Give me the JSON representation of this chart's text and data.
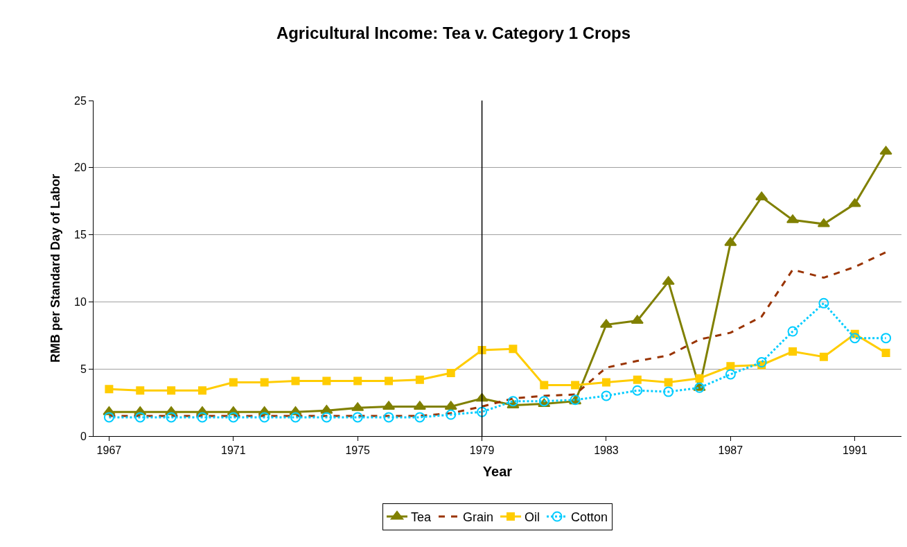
{
  "chart_data": {
    "type": "line",
    "title": "Agricultural Income: Tea v. Category 1 Crops",
    "xlabel": "Year",
    "ylabel": "RMB per Standard Day of Labor",
    "x": [
      1967,
      1968,
      1969,
      1970,
      1971,
      1972,
      1973,
      1974,
      1975,
      1976,
      1977,
      1978,
      1979,
      1980,
      1981,
      1982,
      1983,
      1984,
      1985,
      1986,
      1987,
      1988,
      1989,
      1990,
      1991,
      1992
    ],
    "xlim": [
      1966.5,
      1992.5
    ],
    "xticks": [
      1967,
      1971,
      1975,
      1979,
      1983,
      1987,
      1991
    ],
    "ylim": [
      0,
      25
    ],
    "yticks": [
      0,
      5,
      10,
      15,
      20,
      25
    ],
    "grid": "y",
    "legend": "bottom",
    "ref_lines": [
      {
        "axis": "x",
        "value": 1979,
        "color": "#000000"
      }
    ],
    "series": [
      {
        "name": "Tea",
        "color": "#808000",
        "marker": "triangle",
        "line_style": "solid",
        "values": [
          1.8,
          1.8,
          1.8,
          1.8,
          1.8,
          1.8,
          1.8,
          1.9,
          2.1,
          2.2,
          2.2,
          2.2,
          2.8,
          2.3,
          2.4,
          2.6,
          8.3,
          8.6,
          11.5,
          3.6,
          14.4,
          17.8,
          16.1,
          15.8,
          17.3,
          21.2
        ]
      },
      {
        "name": "Grain",
        "color": "#993300",
        "marker": "none",
        "line_style": "dashed",
        "values": [
          1.5,
          1.5,
          1.5,
          1.5,
          1.5,
          1.5,
          1.5,
          1.5,
          1.5,
          1.5,
          1.5,
          1.7,
          2.2,
          2.8,
          3.0,
          3.1,
          5.1,
          5.6,
          6.0,
          7.2,
          7.7,
          8.9,
          12.4,
          11.8,
          12.6,
          13.7
        ]
      },
      {
        "name": "Oil",
        "color": "#ffcc00",
        "marker": "square",
        "line_style": "solid",
        "values": [
          3.5,
          3.4,
          3.4,
          3.4,
          4.0,
          4.0,
          4.1,
          4.1,
          4.1,
          4.1,
          4.2,
          4.7,
          6.4,
          6.5,
          3.8,
          3.8,
          4.0,
          4.2,
          4.0,
          4.3,
          5.2,
          5.3,
          6.3,
          5.9,
          7.6,
          6.2
        ]
      },
      {
        "name": "Cotton",
        "color": "#00ccff",
        "marker": "circle",
        "line_style": "dotted",
        "values": [
          1.4,
          1.4,
          1.4,
          1.4,
          1.4,
          1.4,
          1.4,
          1.4,
          1.4,
          1.4,
          1.4,
          1.6,
          1.8,
          2.6,
          2.6,
          2.7,
          3.0,
          3.4,
          3.3,
          3.6,
          4.6,
          5.5,
          7.8,
          9.9,
          7.3,
          7.3
        ]
      }
    ]
  }
}
